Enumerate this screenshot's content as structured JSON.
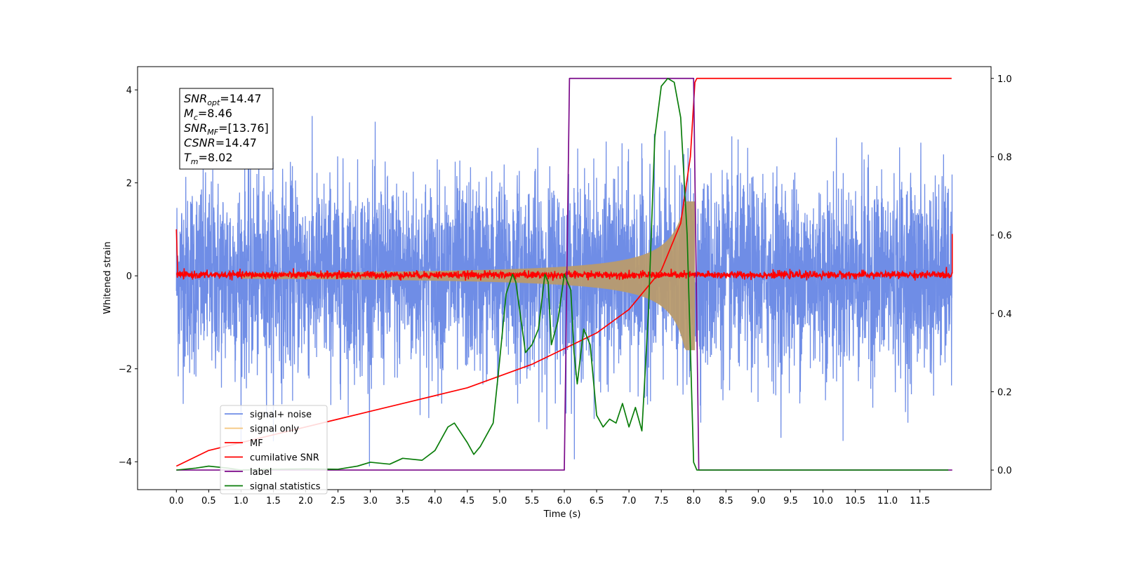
{
  "chart_data": {
    "type": "line",
    "xlabel": "Time (s)",
    "ylabel": "Whitened strain",
    "xlim": [
      -0.6,
      12.6
    ],
    "ylim": [
      -4.6,
      4.5
    ],
    "y2lim": [
      -0.05,
      1.03
    ],
    "x_ticks": [
      "0.0",
      "0.5",
      "1.0",
      "1.5",
      "2.0",
      "2.5",
      "3.0",
      "3.5",
      "4.0",
      "4.5",
      "5.0",
      "5.5",
      "6.0",
      "6.5",
      "7.0",
      "7.5",
      "8.0",
      "8.5",
      "9.0",
      "9.5",
      "10.0",
      "10.5",
      "11.0",
      "11.5"
    ],
    "y_ticks": [
      "4",
      "2",
      "0",
      "−2",
      "−4"
    ],
    "y2_ticks": [
      "1.0",
      "0.8",
      "0.6",
      "0.4",
      "0.2",
      "0.0"
    ],
    "grid": false,
    "annotation": {
      "lines": [
        {
          "main": "SNR",
          "sub": "opt",
          "rest": "=14.47"
        },
        {
          "main": "M",
          "sub": "c",
          "rest": "=8.46"
        },
        {
          "main": "SNR",
          "sub": "MF",
          "rest": "=[13.76]"
        },
        {
          "main": "CSNR",
          "sub": "",
          "rest": "=14.47"
        },
        {
          "main": "T",
          "sub": "m",
          "rest": "=8.02"
        }
      ]
    },
    "legend_position": "lower-left",
    "series": [
      {
        "name": "signal+ noise",
        "color": "#6f8de6",
        "axis": "left",
        "kind": "noise",
        "amplitude_std": 1.0,
        "x_range": [
          0.0,
          12.0
        ]
      },
      {
        "name": "signal only",
        "color": "#f5c57a",
        "axis": "left",
        "kind": "chirp",
        "x_range": [
          0.0,
          8.02
        ],
        "amp_start": 0.05,
        "amp_peak": 1.6
      },
      {
        "name": "MF",
        "color": "#ff0000",
        "axis": "left",
        "kind": "mf_noise",
        "amplitude_std": 0.04,
        "x_range": [
          0.0,
          12.0
        ]
      },
      {
        "name": "cumilative SNR",
        "color": "#ff0000",
        "axis": "right",
        "x": [
          0.0,
          0.5,
          1.0,
          1.5,
          2.0,
          2.5,
          3.0,
          3.5,
          4.0,
          4.5,
          5.0,
          5.5,
          6.0,
          6.5,
          7.0,
          7.5,
          7.8,
          7.95,
          8.02,
          8.05,
          9.0,
          10.0,
          11.0,
          11.99
        ],
        "values": [
          0.01,
          0.05,
          0.07,
          0.09,
          0.11,
          0.13,
          0.15,
          0.17,
          0.19,
          0.21,
          0.24,
          0.27,
          0.31,
          0.35,
          0.41,
          0.51,
          0.63,
          0.8,
          0.99,
          1.0,
          1.0,
          1.0,
          1.0,
          1.0
        ]
      },
      {
        "name": "label",
        "color": "#7b0a8a",
        "axis": "right",
        "x": [
          0.0,
          6.0,
          6.08,
          8.0,
          8.08,
          12.0
        ],
        "values": [
          0.0,
          0.0,
          1.0,
          1.0,
          0.0,
          0.0
        ]
      },
      {
        "name": "signal statistics",
        "color": "#0a7d0a",
        "axis": "right",
        "x": [
          0.0,
          0.3,
          0.5,
          0.8,
          1.0,
          1.5,
          2.0,
          2.5,
          2.8,
          3.0,
          3.3,
          3.5,
          3.8,
          4.0,
          4.2,
          4.3,
          4.5,
          4.6,
          4.7,
          4.9,
          5.0,
          5.1,
          5.2,
          5.25,
          5.3,
          5.4,
          5.5,
          5.6,
          5.7,
          5.75,
          5.8,
          5.9,
          6.0,
          6.1,
          6.15,
          6.2,
          6.3,
          6.4,
          6.5,
          6.6,
          6.7,
          6.8,
          6.9,
          7.0,
          7.1,
          7.2,
          7.3,
          7.4,
          7.5,
          7.6,
          7.7,
          7.8,
          7.9,
          8.0,
          8.05,
          9.0,
          10.0,
          11.0,
          11.94
        ],
        "values": [
          0.0,
          0.005,
          0.01,
          0.005,
          0.0,
          0.002,
          0.003,
          0.002,
          0.01,
          0.02,
          0.015,
          0.03,
          0.025,
          0.05,
          0.11,
          0.12,
          0.07,
          0.04,
          0.06,
          0.12,
          0.28,
          0.45,
          0.5,
          0.48,
          0.42,
          0.3,
          0.32,
          0.36,
          0.5,
          0.48,
          0.32,
          0.38,
          0.5,
          0.46,
          0.3,
          0.22,
          0.36,
          0.32,
          0.14,
          0.11,
          0.13,
          0.12,
          0.17,
          0.11,
          0.16,
          0.1,
          0.4,
          0.85,
          0.98,
          1.0,
          0.99,
          0.9,
          0.6,
          0.02,
          0.0,
          0.0,
          0.0,
          0.0,
          0.0
        ]
      }
    ]
  }
}
